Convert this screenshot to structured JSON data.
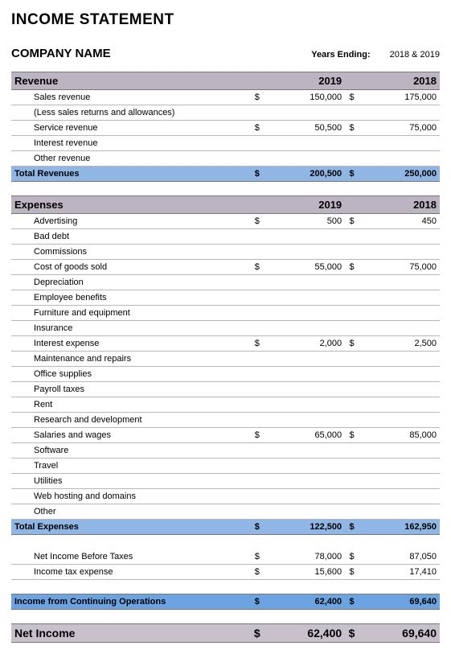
{
  "title": "INCOME STATEMENT",
  "company": "COMPANY NAME",
  "years_ending_label": "Years Ending:",
  "years_ending_value": "2018 & 2019",
  "currency_symbol": "$",
  "col_year_a": "2019",
  "col_year_b": "2018",
  "colors": {
    "section_header_bg": "#bdb4c1",
    "subtotal_bg": "#8fb6e5",
    "icfo_bg": "#6ba4e0",
    "net_income_bg": "#c8c1cb",
    "row_border": "#b8b8b8",
    "page_bg": "#ffffff",
    "text": "#000000"
  },
  "revenue": {
    "header": "Revenue",
    "items": [
      {
        "label": "Sales revenue",
        "a": "150,000",
        "b": "175,000"
      },
      {
        "label": "(Less sales returns and allowances)",
        "a": "",
        "b": ""
      },
      {
        "label": "Service revenue",
        "a": "50,500",
        "b": "75,000"
      },
      {
        "label": "Interest revenue",
        "a": "",
        "b": ""
      },
      {
        "label": "Other revenue",
        "a": "",
        "b": ""
      }
    ],
    "total_label": "Total Revenues",
    "total_a": "200,500",
    "total_b": "250,000"
  },
  "expenses": {
    "header": "Expenses",
    "items": [
      {
        "label": "Advertising",
        "a": "500",
        "b": "450"
      },
      {
        "label": "Bad debt",
        "a": "",
        "b": ""
      },
      {
        "label": "Commissions",
        "a": "",
        "b": ""
      },
      {
        "label": "Cost of goods sold",
        "a": "55,000",
        "b": "75,000"
      },
      {
        "label": "Depreciation",
        "a": "",
        "b": ""
      },
      {
        "label": "Employee benefits",
        "a": "",
        "b": ""
      },
      {
        "label": "Furniture and equipment",
        "a": "",
        "b": ""
      },
      {
        "label": "Insurance",
        "a": "",
        "b": ""
      },
      {
        "label": "Interest expense",
        "a": "2,000",
        "b": "2,500"
      },
      {
        "label": "Maintenance and repairs",
        "a": "",
        "b": ""
      },
      {
        "label": "Office supplies",
        "a": "",
        "b": ""
      },
      {
        "label": "Payroll taxes",
        "a": "",
        "b": ""
      },
      {
        "label": "Rent",
        "a": "",
        "b": ""
      },
      {
        "label": "Research and development",
        "a": "",
        "b": ""
      },
      {
        "label": "Salaries and wages",
        "a": "65,000",
        "b": "85,000"
      },
      {
        "label": "Software",
        "a": "",
        "b": ""
      },
      {
        "label": "Travel",
        "a": "",
        "b": ""
      },
      {
        "label": "Utilities",
        "a": "",
        "b": ""
      },
      {
        "label": "Web hosting and domains",
        "a": "",
        "b": ""
      },
      {
        "label": "Other",
        "a": "",
        "b": ""
      }
    ],
    "total_label": "Total Expenses",
    "total_a": "122,500",
    "total_b": "162,950"
  },
  "after": {
    "items": [
      {
        "label": "Net Income Before Taxes",
        "a": "78,000",
        "b": "87,050"
      },
      {
        "label": "Income tax expense",
        "a": "15,600",
        "b": "17,410"
      }
    ]
  },
  "icfo": {
    "label": "Income from Continuing Operations",
    "a": "62,400",
    "b": "69,640"
  },
  "net": {
    "label": "Net Income",
    "a": "62,400",
    "b": "69,640"
  }
}
